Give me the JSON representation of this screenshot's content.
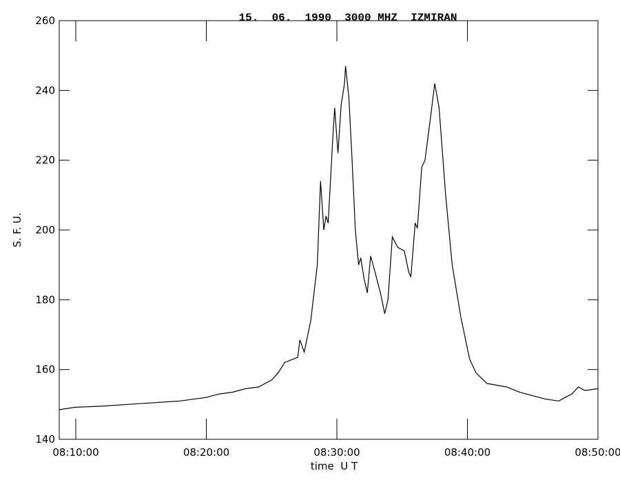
{
  "chart_data": {
    "type": "line",
    "title": "15.  06.  1990  3000 MHZ  IZMIRAN",
    "x_label": "time  U T",
    "y_label": "S. F. U.",
    "x": [
      "08:08:44",
      "08:10:00",
      "08:12:00",
      "08:14:00",
      "08:16:00",
      "08:18:00",
      "08:19:00",
      "08:20:00",
      "08:21:00",
      "08:22:00",
      "08:23:00",
      "08:24:00",
      "08:25:00",
      "08:25:30",
      "08:26:00",
      "08:27:00",
      "08:27:10",
      "08:27:30",
      "08:28:00",
      "08:28:30",
      "08:28:45",
      "08:29:00",
      "08:29:10",
      "08:29:20",
      "08:29:40",
      "08:29:50",
      "08:30:05",
      "08:30:20",
      "08:30:35",
      "08:30:40",
      "08:30:55",
      "08:31:10",
      "08:31:25",
      "08:31:40",
      "08:31:50",
      "08:32:05",
      "08:32:20",
      "08:32:35",
      "08:32:55",
      "08:33:20",
      "08:33:40",
      "08:33:55",
      "08:34:15",
      "08:34:40",
      "08:35:10",
      "08:35:30",
      "08:35:40",
      "08:36:00",
      "08:36:10",
      "08:36:30",
      "08:36:45",
      "08:37:10",
      "08:37:30",
      "08:37:50",
      "08:38:20",
      "08:38:50",
      "08:39:30",
      "08:40:10",
      "08:40:40",
      "08:41:30",
      "08:43:00",
      "08:44:00",
      "08:45:00",
      "08:46:00",
      "08:47:00",
      "08:47:30",
      "08:48:00",
      "08:48:30",
      "08:49:00",
      "08:50:00"
    ],
    "series": [
      {
        "name": "3000 MHZ",
        "color": "#000000",
        "values": [
          148.5,
          149.2,
          149.5,
          150,
          150.5,
          151,
          151.5,
          152,
          153,
          153.5,
          154.5,
          155,
          157,
          159,
          162,
          163.5,
          168.5,
          165,
          174,
          190,
          214,
          200,
          204,
          202,
          225,
          235,
          222,
          236,
          242,
          247,
          238,
          220,
          200,
          190,
          192,
          186,
          182,
          192.5,
          188,
          182,
          176,
          180,
          198,
          195,
          194,
          188,
          186.5,
          202,
          200.5,
          218,
          220,
          232,
          242,
          235,
          210,
          190,
          175,
          163,
          159,
          156,
          155,
          153.5,
          152.5,
          151.5,
          151,
          152,
          153,
          155,
          154,
          154.5
        ]
      }
    ],
    "xlim": [
      "08:08:44",
      "08:50:00"
    ],
    "xticks": [
      "08:10:00",
      "08:20:00",
      "08:30:00",
      "08:40:00",
      "08:50:00"
    ],
    "ylim": [
      140,
      260
    ],
    "yticks": [
      140,
      160,
      180,
      200,
      220,
      240,
      260
    ],
    "grid": false
  }
}
